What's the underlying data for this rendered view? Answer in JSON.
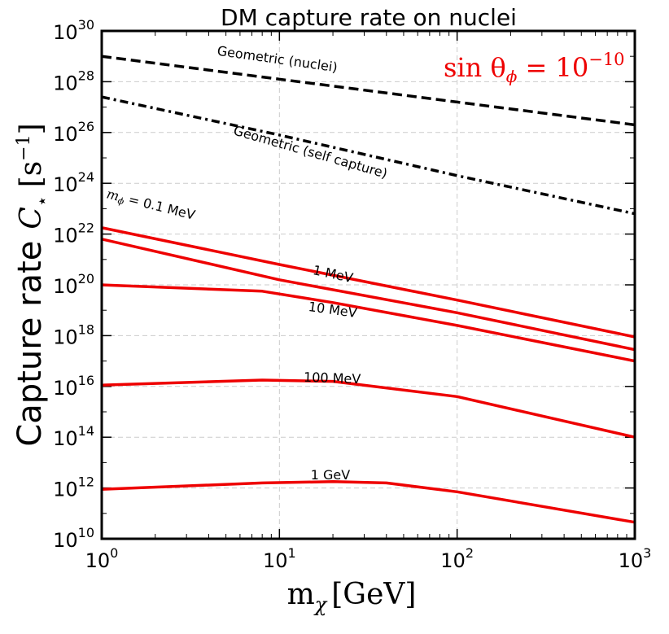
{
  "chart_data": {
    "type": "line",
    "title": "DM capture rate on nuclei",
    "xlabel_main": "m",
    "xlabel_sub": "χ",
    "xlabel_unit": "[GeV]",
    "ylabel_text": "Capture rate",
    "ylabel_symbol": "C",
    "ylabel_sub": "⋆",
    "ylabel_unit_open": "[s",
    "ylabel_unit_exp": "−1",
    "ylabel_unit_close": "]",
    "annotation": {
      "text_main": "sin θ",
      "text_sub": "ϕ",
      "text_eq": " = 10",
      "text_exp": "−10",
      "color": "#ee0000"
    },
    "x_scale": "log",
    "y_scale": "log",
    "xlim": [
      1,
      1000
    ],
    "ylim": [
      10000000000.0,
      1e+30
    ],
    "grid": true,
    "x_ticks": [
      {
        "base": "10",
        "exp": "0"
      },
      {
        "base": "10",
        "exp": "1"
      },
      {
        "base": "10",
        "exp": "2"
      },
      {
        "base": "10",
        "exp": "3"
      }
    ],
    "y_ticks": [
      {
        "base": "10",
        "exp": "10"
      },
      {
        "base": "10",
        "exp": "12"
      },
      {
        "base": "10",
        "exp": "14"
      },
      {
        "base": "10",
        "exp": "16"
      },
      {
        "base": "10",
        "exp": "18"
      },
      {
        "base": "10",
        "exp": "20"
      },
      {
        "base": "10",
        "exp": "22"
      },
      {
        "base": "10",
        "exp": "24"
      },
      {
        "base": "10",
        "exp": "26"
      },
      {
        "base": "10",
        "exp": "28"
      },
      {
        "base": "10",
        "exp": "30"
      }
    ],
    "series": [
      {
        "name": "Geometric (nuclei)",
        "label": "Geometric (nuclei)",
        "style": "dashed",
        "color": "#000000",
        "x": [
          1,
          10,
          100,
          1000
        ],
        "log10_y": [
          29.0,
          28.1,
          27.2,
          26.3
        ]
      },
      {
        "name": "Geometric (self capture)",
        "label": "Geometric (self capture)",
        "style": "dashdot",
        "color": "#000000",
        "x": [
          1,
          10,
          100,
          1000
        ],
        "log10_y": [
          27.4,
          25.9,
          24.3,
          22.8
        ]
      },
      {
        "name": "m_phi = 0.1 MeV",
        "label_math": "m",
        "label_sub": "ϕ",
        "label_rest": " = 0.1 MeV",
        "style": "solid",
        "color": "#ee0000",
        "x": [
          1,
          10,
          100,
          1000
        ],
        "log10_y": [
          22.25,
          20.8,
          19.4,
          17.95
        ]
      },
      {
        "name": "1 MeV",
        "label": "1 MeV",
        "style": "solid",
        "color": "#ee0000",
        "x": [
          1,
          10,
          100,
          1000
        ],
        "log10_y": [
          21.8,
          20.2,
          18.9,
          17.45
        ]
      },
      {
        "name": "10 MeV",
        "label": "10 MeV",
        "style": "solid",
        "color": "#ee0000",
        "x": [
          1,
          8,
          20,
          100,
          1000
        ],
        "log10_y": [
          20.0,
          19.75,
          19.3,
          18.4,
          17.0
        ]
      },
      {
        "name": "100 MeV",
        "label": "100 MeV",
        "style": "solid",
        "color": "#ee0000",
        "x": [
          1,
          8,
          20,
          100,
          1000
        ],
        "log10_y": [
          16.05,
          16.25,
          16.2,
          15.6,
          14.0
        ]
      },
      {
        "name": "1 GeV",
        "label": "1 GeV",
        "style": "solid",
        "color": "#ee0000",
        "x": [
          1,
          8,
          20,
          40,
          100,
          1000
        ],
        "log10_y": [
          11.95,
          12.2,
          12.25,
          12.2,
          11.85,
          10.65
        ]
      }
    ]
  }
}
